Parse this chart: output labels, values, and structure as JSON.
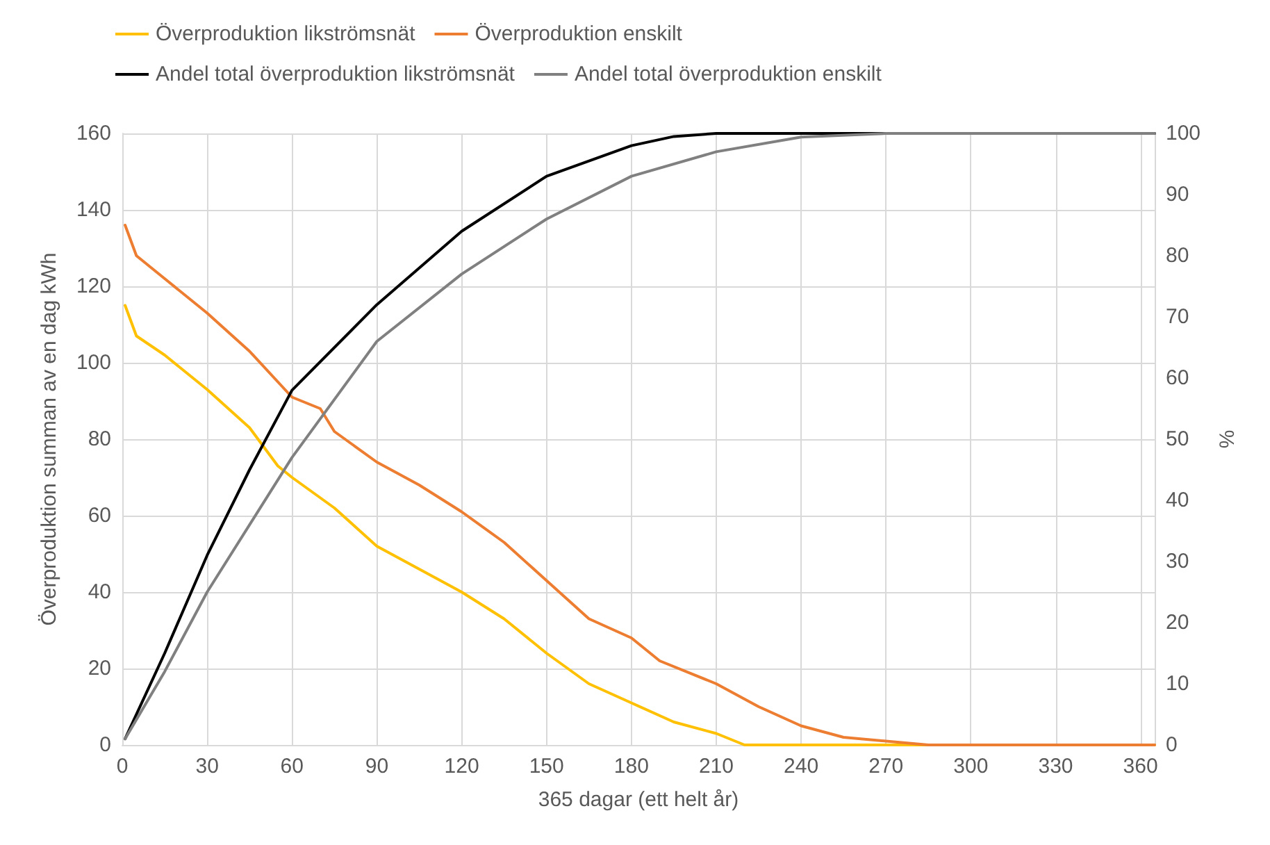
{
  "chart_data": {
    "type": "line",
    "xlabel": "365 dagar (ett helt år)",
    "ylabel": "Överproduktion summan av en dag kWh",
    "y2label": "%",
    "xlim": [
      0,
      365
    ],
    "xticks": [
      0,
      30,
      60,
      90,
      120,
      150,
      180,
      210,
      240,
      270,
      300,
      330,
      360
    ],
    "ylim": [
      0,
      160
    ],
    "yticks": [
      0,
      20,
      40,
      60,
      80,
      100,
      120,
      140,
      160
    ],
    "y2lim": [
      0,
      100
    ],
    "y2ticks": [
      0,
      10,
      20,
      30,
      40,
      50,
      60,
      70,
      80,
      90,
      100
    ],
    "grid": true,
    "legend": "top",
    "marker": "none",
    "line_style": "solid",
    "series": [
      {
        "name": "Överproduktion likströmsnät",
        "color": "#ffc000",
        "x": [
          1,
          5,
          15,
          30,
          45,
          55,
          60,
          75,
          90,
          105,
          120,
          135,
          150,
          165,
          180,
          195,
          210,
          220,
          365
        ],
        "values": [
          115,
          107,
          102,
          93,
          83,
          73,
          70,
          62,
          52,
          46,
          40,
          33,
          24,
          16,
          11,
          6,
          3,
          0,
          0
        ]
      },
      {
        "name": "Överproduktion enskilt",
        "color": "#ed7d31",
        "x": [
          1,
          5,
          15,
          30,
          45,
          60,
          70,
          75,
          90,
          105,
          120,
          135,
          150,
          165,
          180,
          190,
          210,
          225,
          240,
          255,
          270,
          285,
          365
        ],
        "values": [
          136,
          128,
          122,
          113,
          103,
          91,
          88,
          82,
          74,
          68,
          61,
          53,
          43,
          33,
          28,
          22,
          16,
          10,
          5,
          2,
          1,
          0,
          0
        ]
      },
      {
        "name": "Andel total överproduktion likströmsnät",
        "color": "#000000",
        "axis": "y2",
        "x": [
          1,
          15,
          30,
          45,
          60,
          90,
          120,
          150,
          180,
          195,
          210,
          365
        ],
        "values": [
          1,
          15,
          31,
          45,
          58,
          72,
          84,
          93,
          98,
          99.5,
          100,
          100
        ]
      },
      {
        "name": "Andel total överproduktion enskilt",
        "color": "#808080",
        "axis": "y2",
        "x": [
          1,
          15,
          30,
          60,
          90,
          120,
          150,
          180,
          210,
          240,
          270,
          365
        ],
        "values": [
          1,
          12,
          25,
          47,
          66,
          77,
          86,
          93,
          97,
          99.4,
          100,
          100
        ]
      }
    ]
  }
}
